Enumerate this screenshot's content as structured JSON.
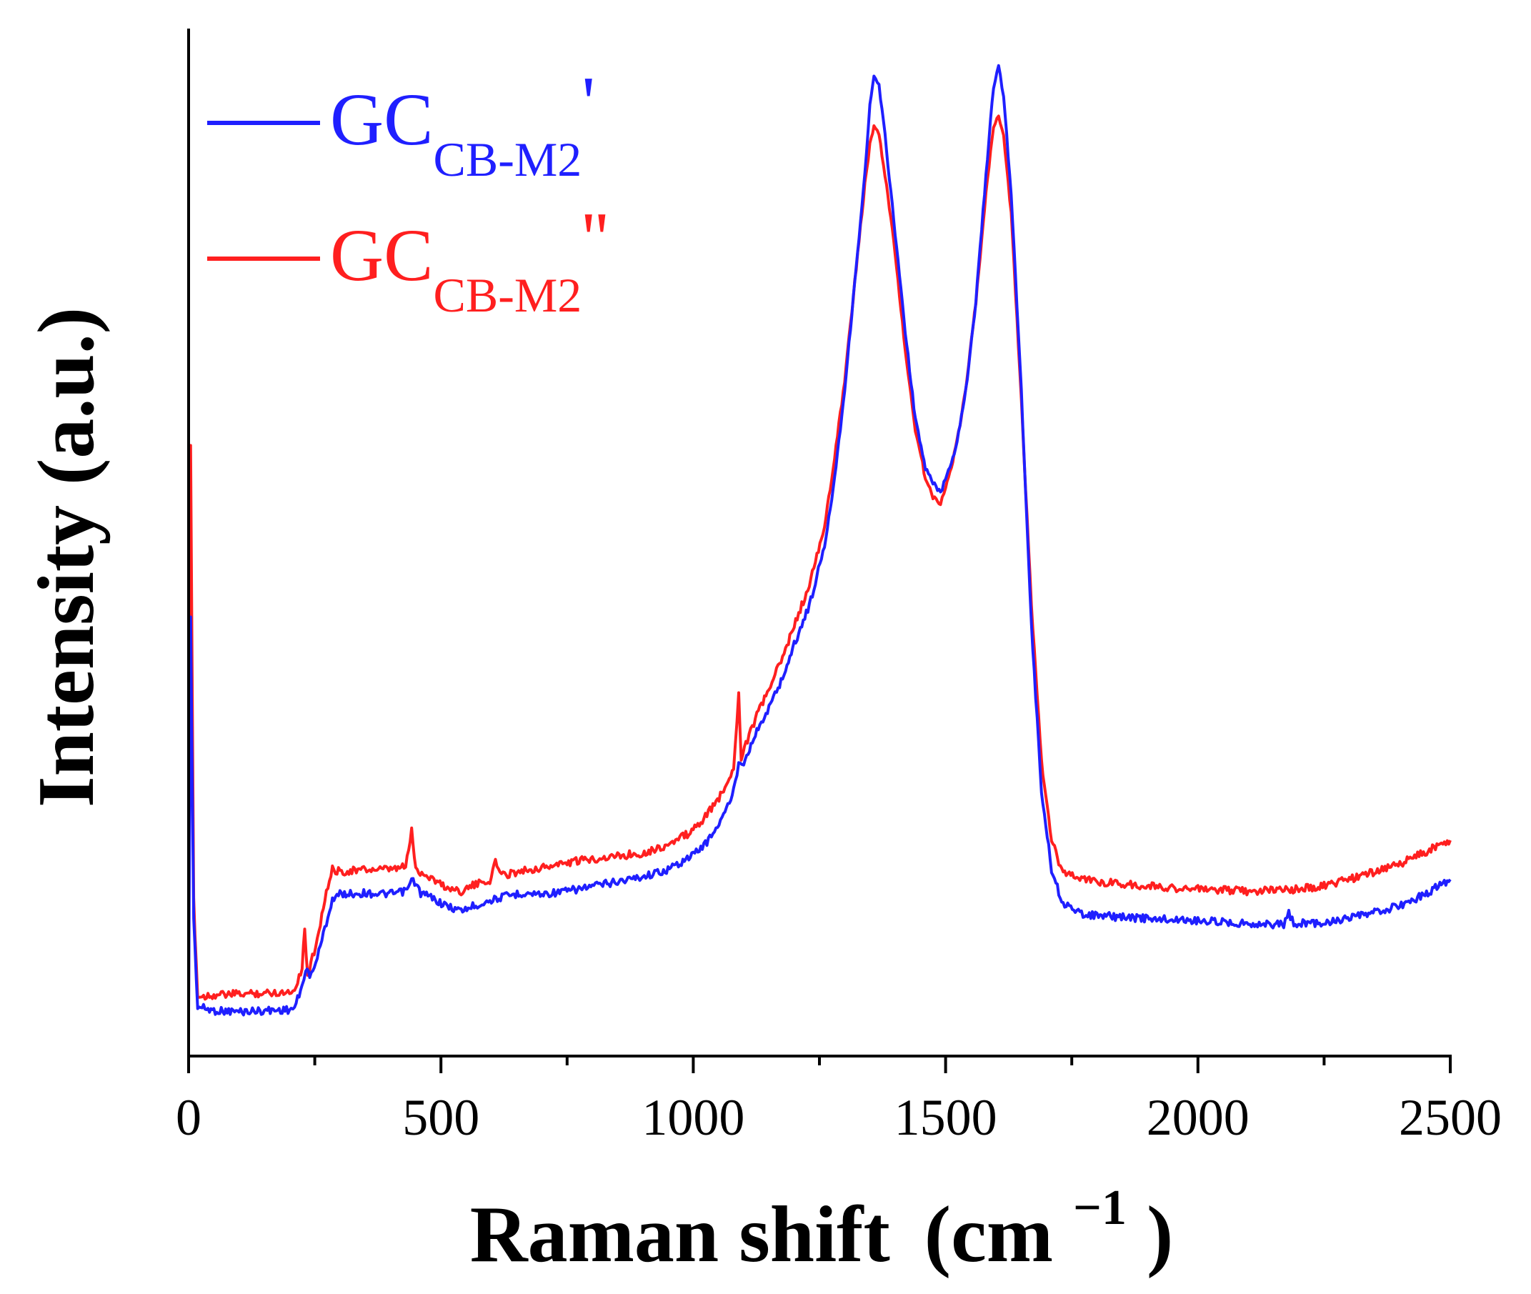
{
  "chart_data": {
    "type": "line",
    "title": "",
    "xlabel": "Raman shift",
    "xlabel_unit_base": "(cm",
    "xlabel_unit_sup": "−1",
    "xlabel_unit_close": ")",
    "ylabel": "Intensity (a.u.)",
    "xlim": [
      0,
      2500
    ],
    "ylim": [
      0,
      100
    ],
    "xticks": [
      0,
      500,
      1000,
      1500,
      2000,
      2500
    ],
    "x_minor_step": 250,
    "grid": false,
    "legend_position": "top-left",
    "series": [
      {
        "name": "GC CB-M2 '",
        "legend_main": "GC",
        "legend_sub": "CB-M2",
        "legend_mark": "'",
        "color": "#1f1fff",
        "points": [
          [
            0,
            2
          ],
          [
            4,
            43
          ],
          [
            10,
            12
          ],
          [
            18,
            3
          ],
          [
            50,
            2.6
          ],
          [
            100,
            2.5
          ],
          [
            150,
            2.6
          ],
          [
            200,
            2.7
          ],
          [
            210,
            2.9
          ],
          [
            225,
            5
          ],
          [
            232,
            7
          ],
          [
            240,
            6
          ],
          [
            255,
            8
          ],
          [
            270,
            11
          ],
          [
            285,
            14
          ],
          [
            300,
            14.5
          ],
          [
            350,
            14.6
          ],
          [
            400,
            14.5
          ],
          [
            430,
            14.8
          ],
          [
            445,
            16
          ],
          [
            460,
            14.6
          ],
          [
            480,
            14.2
          ],
          [
            510,
            13.3
          ],
          [
            540,
            12.8
          ],
          [
            560,
            13.2
          ],
          [
            600,
            13.9
          ],
          [
            630,
            14.3
          ],
          [
            660,
            14.6
          ],
          [
            700,
            14.5
          ],
          [
            750,
            14.8
          ],
          [
            800,
            15.3
          ],
          [
            850,
            15.8
          ],
          [
            900,
            16.3
          ],
          [
            950,
            17
          ],
          [
            1000,
            18.5
          ],
          [
            1030,
            20
          ],
          [
            1060,
            22.5
          ],
          [
            1080,
            25
          ],
          [
            1090,
            28
          ],
          [
            1100,
            28
          ],
          [
            1120,
            30.5
          ],
          [
            1150,
            33.5
          ],
          [
            1180,
            37
          ],
          [
            1200,
            40
          ],
          [
            1230,
            44
          ],
          [
            1260,
            50
          ],
          [
            1280,
            57
          ],
          [
            1300,
            66
          ],
          [
            1320,
            77
          ],
          [
            1340,
            88
          ],
          [
            1350,
            95
          ],
          [
            1358,
            98
          ],
          [
            1368,
            97
          ],
          [
            1380,
            92
          ],
          [
            1400,
            82
          ],
          [
            1420,
            72
          ],
          [
            1440,
            63
          ],
          [
            1460,
            58
          ],
          [
            1475,
            56.5
          ],
          [
            1490,
            55.5
          ],
          [
            1500,
            57
          ],
          [
            1520,
            60
          ],
          [
            1540,
            66
          ],
          [
            1560,
            75
          ],
          [
            1580,
            88
          ],
          [
            1595,
            97
          ],
          [
            1605,
            99
          ],
          [
            1615,
            96
          ],
          [
            1630,
            86
          ],
          [
            1650,
            66
          ],
          [
            1670,
            42
          ],
          [
            1690,
            25
          ],
          [
            1710,
            17
          ],
          [
            1730,
            13.8
          ],
          [
            1760,
            12.6
          ],
          [
            1800,
            12.3
          ],
          [
            1900,
            12
          ],
          [
            2000,
            11.8
          ],
          [
            2100,
            11.5
          ],
          [
            2170,
            11.4
          ],
          [
            2180,
            12.5
          ],
          [
            2190,
            11.5
          ],
          [
            2250,
            11.6
          ],
          [
            2300,
            12
          ],
          [
            2350,
            12.6
          ],
          [
            2400,
            13.3
          ],
          [
            2450,
            14.5
          ],
          [
            2500,
            16
          ]
        ]
      },
      {
        "name": "GC CB-M2 ''",
        "legend_main": "GC",
        "legend_sub": "CB-M2",
        "legend_mark": "''",
        "color": "#ff1f1f",
        "points": [
          [
            0,
            3
          ],
          [
            4,
            60
          ],
          [
            10,
            14
          ],
          [
            18,
            4
          ],
          [
            50,
            4.2
          ],
          [
            100,
            4.3
          ],
          [
            150,
            4.4
          ],
          [
            200,
            4.5
          ],
          [
            210,
            4.8
          ],
          [
            225,
            7
          ],
          [
            230,
            11
          ],
          [
            236,
            6
          ],
          [
            255,
            10
          ],
          [
            270,
            14
          ],
          [
            285,
            17
          ],
          [
            300,
            16.8
          ],
          [
            350,
            17
          ],
          [
            400,
            17
          ],
          [
            430,
            17.3
          ],
          [
            442,
            21
          ],
          [
            450,
            17
          ],
          [
            480,
            16.2
          ],
          [
            510,
            15.2
          ],
          [
            540,
            14.8
          ],
          [
            560,
            15.3
          ],
          [
            600,
            16
          ],
          [
            608,
            18
          ],
          [
            620,
            16.4
          ],
          [
            660,
            16.9
          ],
          [
            700,
            17.2
          ],
          [
            750,
            17.7
          ],
          [
            800,
            18.1
          ],
          [
            850,
            18.4
          ],
          [
            900,
            18.7
          ],
          [
            950,
            19.5
          ],
          [
            1000,
            21
          ],
          [
            1030,
            22.8
          ],
          [
            1060,
            25
          ],
          [
            1080,
            27.5
          ],
          [
            1090,
            35
          ],
          [
            1095,
            28.5
          ],
          [
            1120,
            32
          ],
          [
            1150,
            35.5
          ],
          [
            1180,
            39
          ],
          [
            1200,
            42
          ],
          [
            1230,
            46
          ],
          [
            1260,
            52
          ],
          [
            1280,
            59
          ],
          [
            1300,
            67
          ],
          [
            1320,
            77
          ],
          [
            1340,
            87
          ],
          [
            1350,
            91
          ],
          [
            1358,
            93
          ],
          [
            1368,
            92
          ],
          [
            1380,
            88
          ],
          [
            1400,
            80
          ],
          [
            1420,
            70
          ],
          [
            1440,
            62
          ],
          [
            1460,
            57
          ],
          [
            1475,
            55
          ],
          [
            1490,
            54.5
          ],
          [
            1500,
            56
          ],
          [
            1520,
            60
          ],
          [
            1540,
            66
          ],
          [
            1560,
            75
          ],
          [
            1580,
            86
          ],
          [
            1595,
            93
          ],
          [
            1605,
            94
          ],
          [
            1615,
            92
          ],
          [
            1630,
            84
          ],
          [
            1650,
            65
          ],
          [
            1670,
            44
          ],
          [
            1690,
            28
          ],
          [
            1710,
            20
          ],
          [
            1730,
            17
          ],
          [
            1760,
            16.2
          ],
          [
            1800,
            15.8
          ],
          [
            1900,
            15.3
          ],
          [
            2000,
            15
          ],
          [
            2100,
            14.8
          ],
          [
            2180,
            15
          ],
          [
            2200,
            15
          ],
          [
            2250,
            15.4
          ],
          [
            2300,
            16
          ],
          [
            2350,
            16.8
          ],
          [
            2400,
            17.6
          ],
          [
            2450,
            18.8
          ],
          [
            2500,
            20
          ]
        ]
      }
    ]
  }
}
